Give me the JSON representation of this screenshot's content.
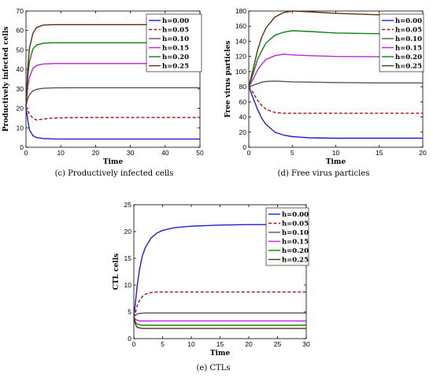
{
  "chart_data": [
    {
      "type": "line",
      "caption": "(c) Productively infected cells",
      "xlabel": "Time",
      "ylabel": "Productively infected cells",
      "xlim": [
        0,
        50
      ],
      "ylim": [
        0,
        70
      ],
      "xticks": [
        0,
        10,
        20,
        30,
        40,
        50
      ],
      "yticks": [
        0,
        10,
        20,
        30,
        40,
        50,
        60,
        70
      ],
      "legend_position": "top-right",
      "series": [
        {
          "name": "h=0.00",
          "x": [
            0,
            0.5,
            1,
            2,
            3,
            5,
            8,
            12,
            20,
            30,
            40,
            50
          ],
          "values": [
            21,
            14,
            9,
            6,
            5,
            4.5,
            4.3,
            4.2,
            4.2,
            4.2,
            4.2,
            4.2
          ]
        },
        {
          "name": "h=0.05",
          "x": [
            0,
            0.5,
            1,
            2,
            3,
            5,
            8,
            12,
            20,
            30,
            40,
            50
          ],
          "values": [
            21,
            19,
            17,
            15,
            14,
            14.5,
            15,
            15.2,
            15.3,
            15.3,
            15.3,
            15.3
          ]
        },
        {
          "name": "h=0.10",
          "x": [
            0,
            0.5,
            1,
            2,
            3,
            5,
            8,
            12,
            20,
            30,
            40,
            50
          ],
          "values": [
            21,
            25,
            27,
            29,
            29.8,
            30.3,
            30.5,
            30.6,
            30.6,
            30.6,
            30.6,
            30.6
          ]
        },
        {
          "name": "h=0.15",
          "x": [
            0,
            0.5,
            1,
            2,
            3,
            5,
            8,
            12,
            20,
            30,
            40,
            50
          ],
          "values": [
            21,
            31,
            36,
            40.5,
            42,
            42.8,
            43,
            43,
            43,
            43,
            43,
            43
          ]
        },
        {
          "name": "h=0.20",
          "x": [
            0,
            0.5,
            1,
            2,
            3,
            5,
            8,
            12,
            20,
            30,
            40,
            50
          ],
          "values": [
            21,
            36,
            44,
            50.5,
            52.5,
            53.5,
            53.7,
            53.7,
            53.7,
            53.7,
            53.7,
            53.7
          ]
        },
        {
          "name": "h=0.25",
          "x": [
            0,
            0.5,
            1,
            2,
            3,
            5,
            8,
            12,
            20,
            30,
            40,
            50
          ],
          "values": [
            21,
            40,
            51,
            58.5,
            61.5,
            62.8,
            63,
            63,
            63,
            63,
            63,
            63
          ]
        }
      ]
    },
    {
      "type": "line",
      "caption": "(d) Free virus particles",
      "xlabel": "Time",
      "ylabel": "Free virus particles",
      "xlim": [
        0,
        20
      ],
      "ylim": [
        0,
        180
      ],
      "xticks": [
        0,
        5,
        10,
        15,
        20
      ],
      "yticks": [
        0,
        20,
        40,
        60,
        80,
        100,
        120,
        140,
        160,
        180
      ],
      "legend_position": "top-right",
      "series": [
        {
          "name": "h=0.00",
          "x": [
            0,
            0.5,
            1,
            1.5,
            2,
            3,
            4,
            5,
            7,
            10,
            15,
            20
          ],
          "values": [
            80,
            65,
            50,
            38,
            30,
            20,
            16,
            14,
            12.5,
            12,
            12,
            12
          ]
        },
        {
          "name": "h=0.05",
          "x": [
            0,
            0.5,
            1,
            1.5,
            2,
            3,
            4,
            5,
            7,
            10,
            15,
            20
          ],
          "values": [
            80,
            72,
            62,
            55,
            50,
            46,
            45,
            45,
            45,
            45,
            45,
            45
          ]
        },
        {
          "name": "h=0.10",
          "x": [
            0,
            0.5,
            1,
            1.5,
            2,
            3,
            4,
            5,
            7,
            10,
            15,
            20
          ],
          "values": [
            80,
            82,
            84,
            86,
            87,
            87.5,
            87,
            86.5,
            86,
            85.5,
            85,
            85
          ]
        },
        {
          "name": "h=0.15",
          "x": [
            0,
            0.5,
            1,
            1.5,
            2,
            3,
            4,
            5,
            7,
            10,
            15,
            20
          ],
          "values": [
            80,
            90,
            102,
            110,
            116,
            121,
            123,
            122,
            121,
            120,
            119.5,
            119
          ]
        },
        {
          "name": "h=0.20",
          "x": [
            0,
            0.5,
            1,
            1.5,
            2,
            3,
            4,
            5,
            7,
            10,
            15,
            20
          ],
          "values": [
            80,
            97,
            116,
            128,
            138,
            148,
            152,
            154,
            153,
            151,
            150,
            150
          ]
        },
        {
          "name": "h=0.25",
          "x": [
            0,
            0.5,
            1,
            1.5,
            2,
            3,
            4,
            5,
            7,
            10,
            15,
            20
          ],
          "values": [
            80,
            103,
            128,
            146,
            158,
            172,
            178,
            180,
            179,
            177,
            175,
            174
          ]
        }
      ]
    },
    {
      "type": "line",
      "caption": "(e) CTLs",
      "xlabel": "Time",
      "ylabel": "CTL cells",
      "xlim": [
        0,
        30
      ],
      "ylim": [
        0,
        25
      ],
      "xticks": [
        0,
        5,
        10,
        15,
        20,
        25,
        30
      ],
      "yticks": [
        0,
        5,
        10,
        15,
        20,
        25
      ],
      "legend_position": "top-right",
      "series": [
        {
          "name": "h=0.00",
          "x": [
            0,
            0.3,
            0.6,
            1,
            1.5,
            2,
            3,
            4,
            5,
            7,
            10,
            15,
            20,
            30
          ],
          "values": [
            4,
            7,
            10,
            13,
            15.5,
            17,
            18.8,
            19.7,
            20.2,
            20.7,
            21,
            21.2,
            21.3,
            21.3
          ]
        },
        {
          "name": "h=0.05",
          "x": [
            0,
            0.3,
            0.6,
            1,
            1.5,
            2,
            3,
            4,
            5,
            7,
            10,
            15,
            20,
            30
          ],
          "values": [
            4,
            5,
            6.2,
            7.2,
            7.9,
            8.3,
            8.6,
            8.7,
            8.7,
            8.7,
            8.7,
            8.7,
            8.7,
            8.7
          ]
        },
        {
          "name": "h=0.10",
          "x": [
            0,
            0.3,
            0.6,
            1,
            1.5,
            2,
            3,
            4,
            5,
            7,
            10,
            15,
            20,
            30
          ],
          "values": [
            4,
            4.4,
            4.6,
            4.7,
            4.75,
            4.8,
            4.8,
            4.8,
            4.8,
            4.8,
            4.8,
            4.8,
            4.8,
            4.8
          ]
        },
        {
          "name": "h=0.15",
          "x": [
            0,
            0.3,
            0.6,
            1,
            1.5,
            2,
            3,
            4,
            5,
            7,
            10,
            15,
            20,
            30
          ],
          "values": [
            4,
            3.6,
            3.4,
            3.3,
            3.3,
            3.3,
            3.3,
            3.3,
            3.3,
            3.3,
            3.3,
            3.3,
            3.3,
            3.3
          ]
        },
        {
          "name": "h=0.20",
          "x": [
            0,
            0.3,
            0.6,
            1,
            1.5,
            2,
            3,
            4,
            5,
            7,
            10,
            15,
            20,
            30
          ],
          "values": [
            4,
            3,
            2.7,
            2.6,
            2.5,
            2.5,
            2.5,
            2.5,
            2.5,
            2.5,
            2.5,
            2.5,
            2.5,
            2.5
          ]
        },
        {
          "name": "h=0.25",
          "x": [
            0,
            0.3,
            0.6,
            1,
            1.5,
            2,
            3,
            4,
            5,
            7,
            10,
            15,
            20,
            30
          ],
          "values": [
            4,
            2.6,
            2.1,
            2,
            1.9,
            1.9,
            1.9,
            1.9,
            1.9,
            1.9,
            1.9,
            1.9,
            1.9,
            1.9
          ]
        }
      ]
    }
  ],
  "series_styles": {
    "colors": [
      "#1f1fd6",
      "#b01010",
      "#555555",
      "#c020e0",
      "#128012",
      "#5a3010"
    ],
    "dashes": [
      "",
      "4,2.5",
      "",
      "",
      "",
      ""
    ]
  }
}
